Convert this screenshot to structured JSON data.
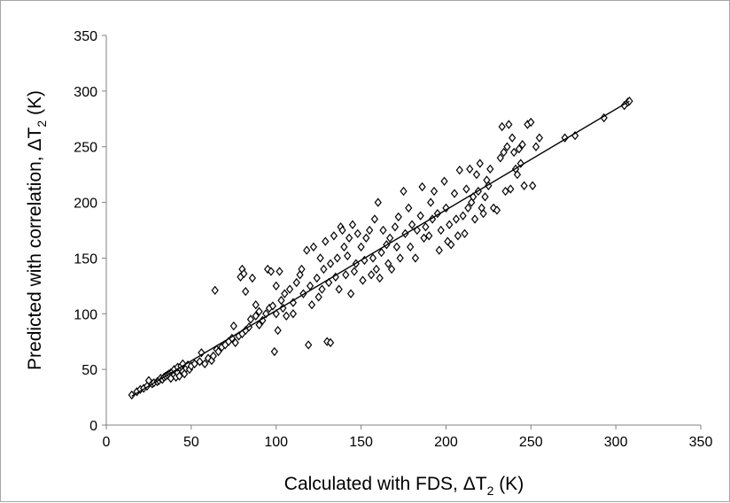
{
  "chart_data": {
    "type": "scatter",
    "title": "",
    "xlabel": "Calculated with FDS, ΔT",
    "xlabel_sub": "2",
    "xlabel_unit": " (K)",
    "ylabel": "Predicted with correlation, ΔT",
    "ylabel_sub": "2",
    "ylabel_unit": " (K)",
    "xlim": [
      0,
      350
    ],
    "ylim": [
      0,
      350
    ],
    "xticks": [
      "0",
      "50",
      "100",
      "150",
      "200",
      "250",
      "300",
      "350"
    ],
    "yticks": [
      "0",
      "50",
      "100",
      "150",
      "200",
      "250",
      "300",
      "350"
    ],
    "grid": false,
    "legend": "none",
    "marker": "open-diamond",
    "marker_color": "#000000",
    "series": [
      {
        "points": [
          [
            15,
            27
          ],
          [
            18,
            30
          ],
          [
            20,
            32
          ],
          [
            22,
            33
          ],
          [
            24,
            35
          ],
          [
            25,
            40
          ],
          [
            27,
            37
          ],
          [
            28,
            38
          ],
          [
            30,
            39
          ],
          [
            31,
            40
          ],
          [
            32,
            42
          ],
          [
            33,
            41
          ],
          [
            34,
            43
          ],
          [
            35,
            44
          ],
          [
            36,
            45
          ],
          [
            37,
            46
          ],
          [
            38,
            47
          ],
          [
            38,
            42
          ],
          [
            39,
            48
          ],
          [
            40,
            45
          ],
          [
            40,
            50
          ],
          [
            41,
            43
          ],
          [
            42,
            47
          ],
          [
            42,
            52
          ],
          [
            43,
            44
          ],
          [
            44,
            50
          ],
          [
            44,
            53
          ],
          [
            45,
            48
          ],
          [
            45,
            55
          ],
          [
            46,
            46
          ],
          [
            47,
            51
          ],
          [
            48,
            54
          ],
          [
            49,
            50
          ],
          [
            50,
            53
          ],
          [
            52,
            55
          ],
          [
            55,
            57
          ],
          [
            56,
            65
          ],
          [
            58,
            55
          ],
          [
            60,
            60
          ],
          [
            62,
            58
          ],
          [
            63,
            62
          ],
          [
            64,
            121
          ],
          [
            65,
            68
          ],
          [
            66,
            66
          ],
          [
            68,
            70
          ],
          [
            70,
            72
          ],
          [
            72,
            75
          ],
          [
            74,
            78
          ],
          [
            75,
            89
          ],
          [
            76,
            74
          ],
          [
            78,
            80
          ],
          [
            79,
            133
          ],
          [
            80,
            140
          ],
          [
            80,
            82
          ],
          [
            81,
            136
          ],
          [
            82,
            85
          ],
          [
            82,
            120
          ],
          [
            84,
            88
          ],
          [
            85,
            95
          ],
          [
            86,
            132
          ],
          [
            88,
            98
          ],
          [
            88,
            108
          ],
          [
            90,
            102
          ],
          [
            90,
            90
          ],
          [
            92,
            94
          ],
          [
            94,
            100
          ],
          [
            95,
            140
          ],
          [
            96,
            105
          ],
          [
            97,
            138
          ],
          [
            98,
            107
          ],
          [
            99,
            66
          ],
          [
            100,
            100
          ],
          [
            100,
            125
          ],
          [
            101,
            85
          ],
          [
            102,
            138
          ],
          [
            103,
            112
          ],
          [
            104,
            105
          ],
          [
            105,
            118
          ],
          [
            106,
            98
          ],
          [
            108,
            122
          ],
          [
            110,
            110
          ],
          [
            110,
            100
          ],
          [
            112,
            128
          ],
          [
            114,
            135
          ],
          [
            115,
            140
          ],
          [
            116,
            118
          ],
          [
            118,
            157
          ],
          [
            119,
            72
          ],
          [
            120,
            125
          ],
          [
            121,
            108
          ],
          [
            122,
            160
          ],
          [
            124,
            132
          ],
          [
            125,
            115
          ],
          [
            126,
            150
          ],
          [
            127,
            122
          ],
          [
            128,
            140
          ],
          [
            129,
            165
          ],
          [
            130,
            75
          ],
          [
            131,
            128
          ],
          [
            132,
            74
          ],
          [
            132,
            145
          ],
          [
            134,
            170
          ],
          [
            135,
            133
          ],
          [
            136,
            150
          ],
          [
            137,
            122
          ],
          [
            138,
            178
          ],
          [
            139,
            175
          ],
          [
            140,
            160
          ],
          [
            141,
            135
          ],
          [
            142,
            152
          ],
          [
            143,
            168
          ],
          [
            144,
            118
          ],
          [
            145,
            180
          ],
          [
            146,
            138
          ],
          [
            147,
            145
          ],
          [
            148,
            172
          ],
          [
            150,
            160
          ],
          [
            151,
            130
          ],
          [
            152,
            148
          ],
          [
            153,
            168
          ],
          [
            155,
            175
          ],
          [
            156,
            135
          ],
          [
            157,
            150
          ],
          [
            158,
            185
          ],
          [
            159,
            140
          ],
          [
            160,
            200
          ],
          [
            161,
            132
          ],
          [
            162,
            155
          ],
          [
            163,
            175
          ],
          [
            165,
            162
          ],
          [
            166,
            145
          ],
          [
            167,
            168
          ],
          [
            168,
            140
          ],
          [
            170,
            178
          ],
          [
            171,
            160
          ],
          [
            172,
            187
          ],
          [
            173,
            150
          ],
          [
            175,
            210
          ],
          [
            176,
            172
          ],
          [
            178,
            195
          ],
          [
            179,
            160
          ],
          [
            180,
            180
          ],
          [
            182,
            150
          ],
          [
            183,
            175
          ],
          [
            185,
            188
          ],
          [
            186,
            214
          ],
          [
            187,
            168
          ],
          [
            188,
            178
          ],
          [
            190,
            170
          ],
          [
            191,
            200
          ],
          [
            192,
            185
          ],
          [
            193,
            210
          ],
          [
            195,
            190
          ],
          [
            196,
            157
          ],
          [
            197,
            175
          ],
          [
            199,
            219
          ],
          [
            200,
            195
          ],
          [
            201,
            165
          ],
          [
            202,
            180
          ],
          [
            203,
            162
          ],
          [
            205,
            208
          ],
          [
            206,
            185
          ],
          [
            207,
            170
          ],
          [
            208,
            229
          ],
          [
            210,
            188
          ],
          [
            211,
            172
          ],
          [
            212,
            212
          ],
          [
            213,
            195
          ],
          [
            214,
            230
          ],
          [
            215,
            200
          ],
          [
            216,
            205
          ],
          [
            217,
            185
          ],
          [
            218,
            225
          ],
          [
            219,
            210
          ],
          [
            220,
            235
          ],
          [
            221,
            195
          ],
          [
            222,
            190
          ],
          [
            223,
            205
          ],
          [
            224,
            220
          ],
          [
            225,
            215
          ],
          [
            226,
            230
          ],
          [
            228,
            195
          ],
          [
            230,
            193
          ],
          [
            232,
            240
          ],
          [
            233,
            268
          ],
          [
            234,
            245
          ],
          [
            235,
            210
          ],
          [
            236,
            250
          ],
          [
            237,
            270
          ],
          [
            238,
            212
          ],
          [
            239,
            258
          ],
          [
            240,
            245
          ],
          [
            241,
            230
          ],
          [
            242,
            225
          ],
          [
            243,
            248
          ],
          [
            244,
            235
          ],
          [
            245,
            252
          ],
          [
            246,
            215
          ],
          [
            248,
            270
          ],
          [
            250,
            272
          ],
          [
            251,
            215
          ],
          [
            253,
            250
          ],
          [
            255,
            258
          ],
          [
            270,
            258
          ],
          [
            276,
            260
          ],
          [
            293,
            276
          ],
          [
            305,
            287
          ],
          [
            307,
            290
          ],
          [
            308,
            291
          ]
        ]
      }
    ],
    "trendline": {
      "x": [
        15,
        308
      ],
      "y": [
        26,
        291
      ]
    }
  }
}
